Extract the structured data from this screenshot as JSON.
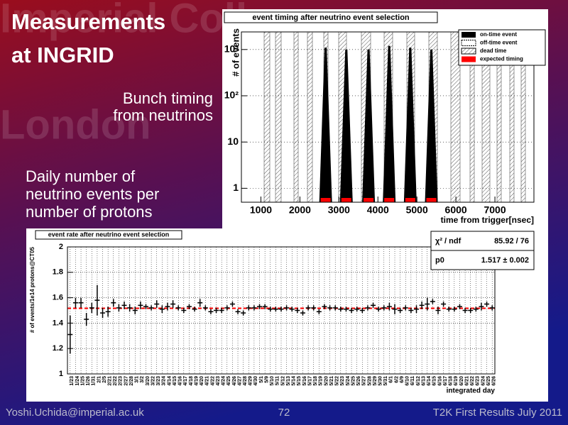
{
  "slide": {
    "title": [
      "Measurements",
      "at INGRID"
    ],
    "watermark": [
      "Imperial College",
      "London"
    ],
    "caption1": [
      "Bunch timing",
      "from neutrinos"
    ],
    "caption2": [
      "Daily number of",
      "neutrino events per",
      "number of protons"
    ],
    "footer_left": "Yoshi.Uchida@imperial.ac.uk",
    "page": "72",
    "footer_right": "T2K First Results July 2011"
  },
  "chart_data": [
    {
      "type": "bar",
      "title": "event timing after neutrino event selection",
      "y_label": "# of events",
      "x_label": "time from trigger[nsec]",
      "legend": [
        "on-time event",
        "off-time event",
        "dead time",
        "expected timing"
      ],
      "x": [
        2660,
        3190,
        3760,
        4290,
        4830,
        5370
      ],
      "values": [
        1100,
        1000,
        1000,
        1200,
        1100,
        1000
      ],
      "color": "#000000",
      "expected_color": "#ff0000",
      "xlim": [
        500,
        8000
      ],
      "xticks": [
        1000,
        2000,
        3000,
        4000,
        5000,
        6000,
        7000
      ],
      "ylim": [
        0.5,
        2400
      ],
      "log_y": true,
      "yticks": [
        1,
        10,
        {
          "value": 100,
          "label": "10²"
        },
        {
          "value": 1000,
          "label": "10³"
        }
      ]
    },
    {
      "type": "errorbar",
      "title": "event rate after neutrino event selection",
      "y_label": "# of events/1e14 protons@CT05",
      "x_label": "integrated day",
      "stats": [
        [
          "χ² / ndf",
          "85.92 / 76"
        ],
        [
          "p0",
          "1.517 ± 0.002"
        ]
      ],
      "fit": 1.517,
      "fit_color": "#ff0000",
      "grid": true,
      "categories": [
        "1/23",
        "1/24",
        "1/25",
        "1/26",
        "1/31",
        "2/1",
        "2/5",
        "2/21",
        "2/22",
        "2/23",
        "2/27",
        "2/28",
        "3/1",
        "3/2",
        "3/20",
        "3/22",
        "3/23",
        "3/24",
        "4/14",
        "4/15",
        "4/16",
        "4/17",
        "4/18",
        "4/19",
        "4/20",
        "4/21",
        "4/22",
        "4/23",
        "4/24",
        "4/25",
        "4/26",
        "4/27",
        "4/28",
        "4/29",
        "4/30",
        "5/1",
        "5/9",
        "5/10",
        "5/11",
        "5/12",
        "5/13",
        "5/14",
        "5/15",
        "5/16",
        "5/17",
        "5/18",
        "5/19",
        "5/20",
        "5/21",
        "5/22",
        "5/23",
        "5/24",
        "5/25",
        "5/26",
        "5/27",
        "5/28",
        "5/29",
        "5/30",
        "5/31",
        "6/1",
        "6/2",
        "6/9",
        "6/10",
        "6/11",
        "6/12",
        "6/13",
        "6/14",
        "6/15",
        "6/16",
        "6/17",
        "6/18",
        "6/19",
        "6/20",
        "6/21",
        "6/22",
        "6/23",
        "6/24",
        "6/25",
        "6/26"
      ],
      "values": [
        1.31,
        1.56,
        1.56,
        1.43,
        1.52,
        1.58,
        1.48,
        1.49,
        1.56,
        1.52,
        1.54,
        1.52,
        1.5,
        1.54,
        1.53,
        1.52,
        1.55,
        1.51,
        1.53,
        1.55,
        1.52,
        1.5,
        1.53,
        1.51,
        1.56,
        1.52,
        1.49,
        1.5,
        1.5,
        1.52,
        1.55,
        1.49,
        1.48,
        1.52,
        1.52,
        1.53,
        1.53,
        1.51,
        1.51,
        1.51,
        1.52,
        1.51,
        1.5,
        1.48,
        1.52,
        1.52,
        1.49,
        1.53,
        1.52,
        1.52,
        1.51,
        1.51,
        1.5,
        1.51,
        1.5,
        1.52,
        1.54,
        1.51,
        1.52,
        1.53,
        1.51,
        1.5,
        1.52,
        1.5,
        1.51,
        1.54,
        1.55,
        1.57,
        1.5,
        1.55,
        1.51,
        1.51,
        1.53,
        1.5,
        1.5,
        1.51,
        1.53,
        1.55,
        1.52
      ],
      "errors": [
        0.15,
        0.04,
        0.04,
        0.05,
        0.04,
        0.12,
        0.04,
        0.04,
        0.03,
        0.03,
        0.03,
        0.03,
        0.03,
        0.03,
        0.02,
        0.02,
        0.03,
        0.03,
        0.03,
        0.03,
        0.02,
        0.02,
        0.02,
        0.02,
        0.03,
        0.02,
        0.02,
        0.02,
        0.02,
        0.02,
        0.02,
        0.02,
        0.02,
        0.02,
        0.02,
        0.02,
        0.02,
        0.02,
        0.02,
        0.02,
        0.02,
        0.02,
        0.02,
        0.02,
        0.02,
        0.02,
        0.02,
        0.02,
        0.02,
        0.02,
        0.02,
        0.02,
        0.02,
        0.02,
        0.02,
        0.02,
        0.02,
        0.02,
        0.02,
        0.03,
        0.04,
        0.02,
        0.02,
        0.02,
        0.03,
        0.03,
        0.05,
        0.02,
        0.03,
        0.02,
        0.02,
        0.02,
        0.02,
        0.02,
        0.02,
        0.02,
        0.03,
        0.02,
        0.02
      ],
      "color": "#000000",
      "ylim": [
        1,
        2
      ],
      "yticks": [
        1,
        1.2,
        1.4,
        1.6,
        1.8,
        2
      ]
    }
  ]
}
